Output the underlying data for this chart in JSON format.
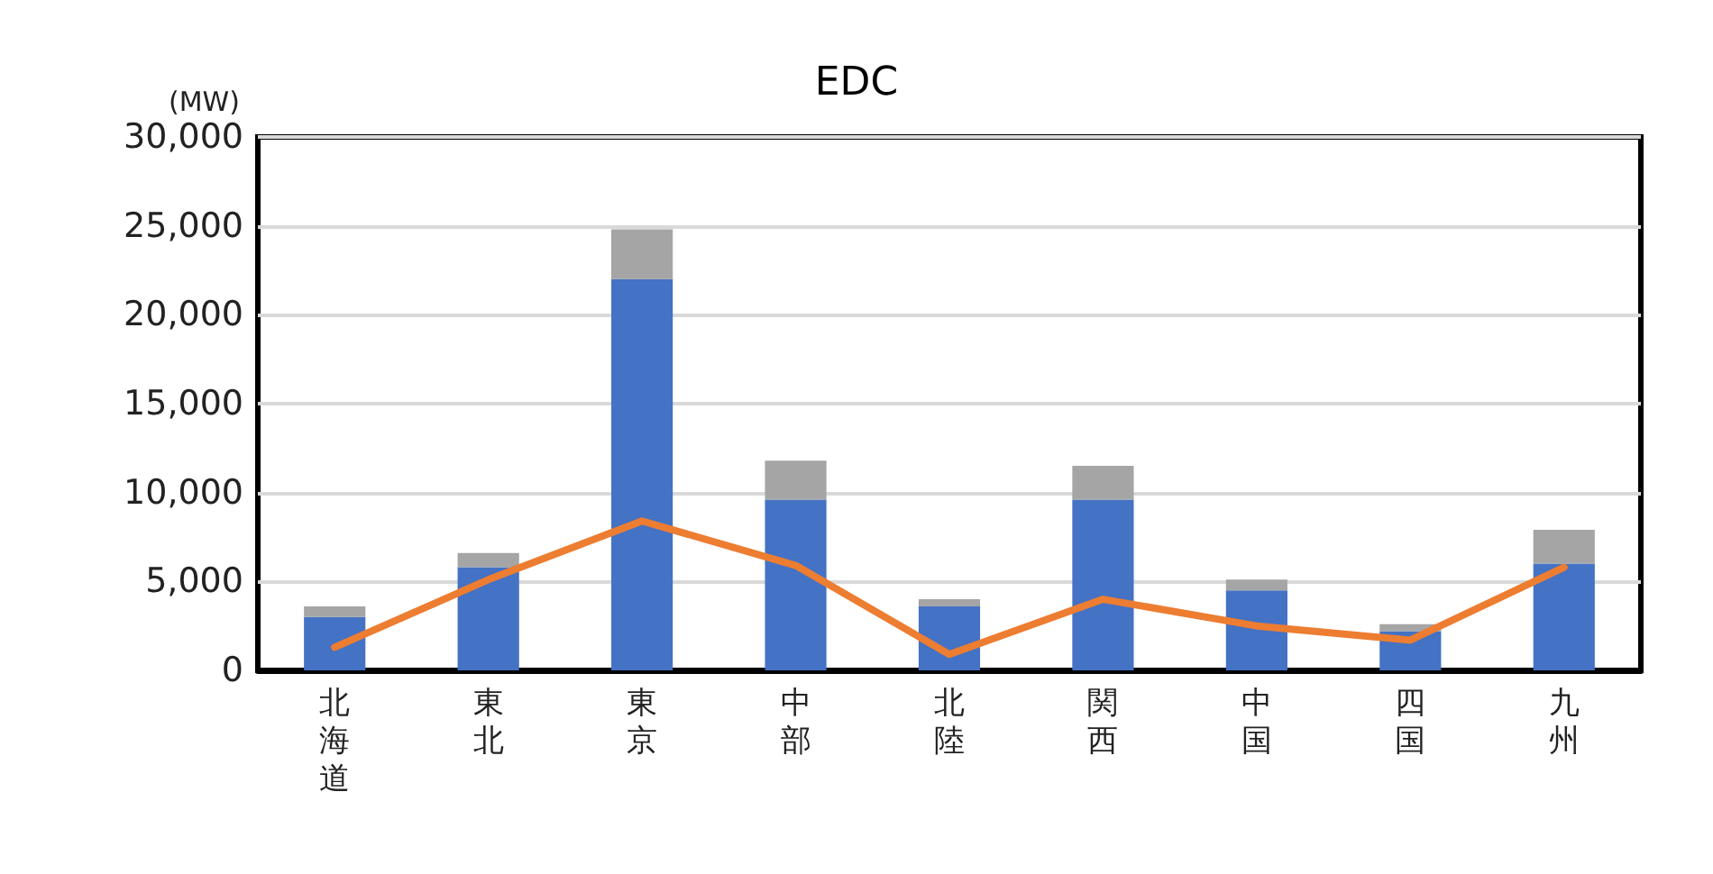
{
  "chart_data": {
    "type": "bar",
    "title": "EDC",
    "ylabel": "(MW)",
    "stacked": true,
    "categories": [
      "北海道",
      "東北",
      "東京",
      "中部",
      "北陸",
      "関西",
      "中国",
      "四国",
      "九州"
    ],
    "series": [
      {
        "color": "#4472c4",
        "values": [
          3000,
          5800,
          22000,
          9600,
          3600,
          9600,
          4500,
          2200,
          6000
        ]
      },
      {
        "color": "#a5a5a5",
        "values": [
          600,
          800,
          2800,
          2200,
          400,
          1900,
          600,
          400,
          1900
        ]
      },
      {
        "type": "line",
        "color": "#ed7d31",
        "marker": "none",
        "values": [
          1300,
          5100,
          8400,
          5900,
          900,
          4000,
          2500,
          1700,
          5800
        ]
      }
    ],
    "ylim": [
      0,
      30000
    ],
    "yticks": [
      0,
      {
        "value": 5000,
        "label": "5,000"
      },
      {
        "value": 10000,
        "label": "10,000"
      },
      {
        "value": 15000,
        "label": "15,000"
      },
      {
        "value": 20000,
        "label": "20,000"
      },
      {
        "value": 25000,
        "label": "25,000"
      },
      {
        "value": 30000,
        "label": "30,000"
      }
    ],
    "grid": "y"
  }
}
